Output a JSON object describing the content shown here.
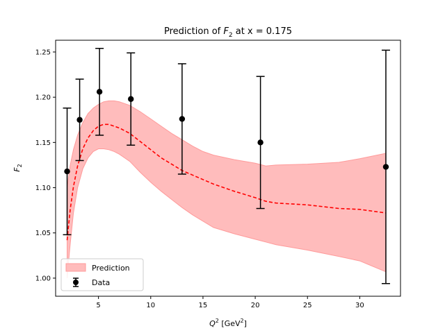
{
  "chart_data": {
    "type": "line",
    "title": {
      "prefix": "Prediction of ",
      "symbol": "F",
      "subscript": "2",
      "suffix": " at x = 0.175"
    },
    "xlabel": {
      "symbol": "Q",
      "superscript": "2",
      "unit": "[GeV",
      "unit_superscript": "2",
      "unit_close": "]"
    },
    "ylabel": {
      "symbol": "F",
      "subscript": "2"
    },
    "xlim": [
      0.9,
      33.9
    ],
    "ylim": [
      0.98,
      1.263
    ],
    "xticks": [
      5,
      10,
      15,
      20,
      25,
      30
    ],
    "yticks": [
      1.0,
      1.05,
      1.1,
      1.15,
      1.2,
      1.25
    ],
    "ytick_labels": [
      "1.00",
      "1.05",
      "1.10",
      "1.15",
      "1.20",
      "1.25"
    ],
    "legend_position": "lower-left",
    "series": [
      {
        "name": "Prediction",
        "kind": "band",
        "color": "#ff0000",
        "fill_color": "#ffbcbc",
        "x": [
          2.0,
          2.3,
          2.6,
          3.0,
          3.5,
          4.0,
          4.5,
          5.0,
          5.5,
          6.0,
          6.5,
          7.0,
          8.0,
          9.0,
          10.0,
          11.0,
          12.0,
          13.0,
          14.0,
          15.0,
          16.0,
          18.0,
          20.0,
          21.0,
          22.0,
          25.0,
          28.0,
          30.0,
          32.5
        ],
        "central": [
          1.042,
          1.076,
          1.101,
          1.124,
          1.143,
          1.155,
          1.163,
          1.168,
          1.17,
          1.17,
          1.168,
          1.166,
          1.16,
          1.151,
          1.142,
          1.133,
          1.126,
          1.119,
          1.114,
          1.109,
          1.104,
          1.096,
          1.089,
          1.085,
          1.083,
          1.081,
          1.077,
          1.076,
          1.072
        ],
        "upper": [
          1.1,
          1.125,
          1.142,
          1.158,
          1.172,
          1.182,
          1.188,
          1.192,
          1.195,
          1.196,
          1.196,
          1.195,
          1.191,
          1.184,
          1.176,
          1.168,
          1.16,
          1.153,
          1.146,
          1.14,
          1.136,
          1.131,
          1.127,
          1.124,
          1.125,
          1.126,
          1.128,
          1.132,
          1.138
        ],
        "lower": [
          1.0,
          1.038,
          1.072,
          1.1,
          1.121,
          1.133,
          1.14,
          1.143,
          1.143,
          1.142,
          1.14,
          1.137,
          1.129,
          1.117,
          1.106,
          1.096,
          1.087,
          1.078,
          1.07,
          1.063,
          1.056,
          1.049,
          1.043,
          1.04,
          1.037,
          1.031,
          1.024,
          1.019,
          1.007
        ]
      },
      {
        "name": "Data",
        "kind": "errorbar",
        "color": "#000000",
        "x": [
          2.0,
          3.2,
          5.1,
          8.1,
          13.0,
          20.5,
          32.5
        ],
        "y": [
          1.118,
          1.175,
          1.206,
          1.198,
          1.176,
          1.15,
          1.123
        ],
        "yerr": [
          0.07,
          0.045,
          0.048,
          0.051,
          0.061,
          0.073,
          0.129
        ]
      }
    ]
  }
}
